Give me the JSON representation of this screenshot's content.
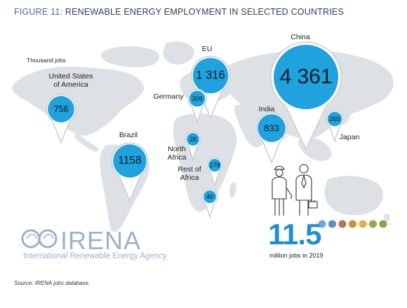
{
  "figure": {
    "number": "FIGURE 11:",
    "title": "RENEWABLE ENERGY EMPLOYMENT IN SELECTED COUNTRIES"
  },
  "unit_label": "Thousand jobs",
  "source": "Source: IRENA jobs database.",
  "colors": {
    "bubble": "#1fa2dd",
    "bubble_border": "#c9cfd6",
    "map": "#dde1e6",
    "title": "#2f3b5a",
    "accent_number": "#1f8fd3",
    "logo": "#9ab3c9"
  },
  "chart_data": {
    "type": "bubble-map",
    "title": "RENEWABLE ENERGY EMPLOYMENT IN SELECTED COUNTRIES",
    "unit": "Thousand jobs",
    "categories": [
      "United States of America",
      "Brazil",
      "EU",
      "Germany",
      "North Africa",
      "Rest of Africa",
      "India",
      "China",
      "Japan"
    ],
    "values": [
      756,
      1158,
      1316,
      309,
      28,
      179,
      833,
      4361,
      265
    ],
    "value_labels": [
      "756",
      "1158",
      "1 316",
      "309",
      "28",
      "179",
      "833",
      "4 361",
      "265"
    ],
    "extra_value": {
      "label": "40",
      "value": 40
    }
  },
  "labels": {
    "usa": [
      "United States",
      "of America"
    ],
    "brazil": "Brazil",
    "eu": "EU",
    "germany": "Germany",
    "north_africa": [
      "North",
      "Africa"
    ],
    "rest_africa": [
      "Rest of",
      "Africa"
    ],
    "india": "India",
    "china": "China",
    "japan": "Japan"
  },
  "total": {
    "value": "11.5",
    "caption": "million jobs in 2019"
  },
  "logo": {
    "name": "IRENA",
    "subtitle": "International Renewable Energy Agency"
  },
  "sector_icons": [
    "solar-pv-icon",
    "hydro-icon",
    "bioenergy-icon",
    "wind-icon",
    "solar-heat-icon",
    "geothermal-icon",
    "biofuel-icon"
  ]
}
